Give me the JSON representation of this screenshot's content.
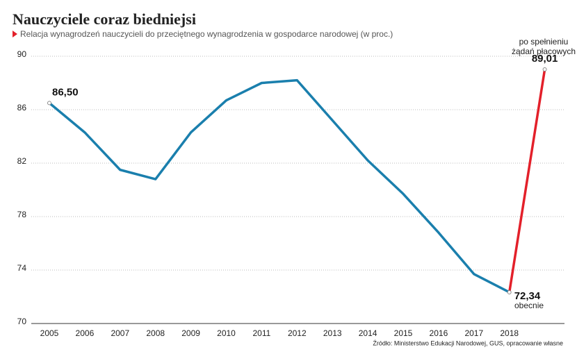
{
  "chart_data": {
    "type": "line",
    "title": "Nauczyciele coraz biedniejsi",
    "subtitle": "Relacja wynagrodzeń nauczycieli do przeciętnego wynagrodzenia w gospodarce narodowej (w proc.)",
    "categories": [
      "2005",
      "2006",
      "2007",
      "2008",
      "2009",
      "2010",
      "2011",
      "2012",
      "2013",
      "2014",
      "2015",
      "2016",
      "2017",
      "2018",
      null
    ],
    "series": [
      {
        "name": "obecnie",
        "color": "#1a7fad",
        "values": [
          86.5,
          84.3,
          81.5,
          80.8,
          84.3,
          86.7,
          88.0,
          88.2,
          85.2,
          82.2,
          79.7,
          76.8,
          73.7,
          72.34,
          null
        ],
        "value_labels": [
          "86,50",
          null,
          null,
          null,
          null,
          null,
          null,
          null,
          null,
          null,
          null,
          null,
          null,
          "72,34",
          null
        ]
      },
      {
        "name": "po spełnieniu żądań płacowych",
        "color": "#e3202a",
        "values": [
          null,
          null,
          null,
          null,
          null,
          null,
          null,
          null,
          null,
          null,
          null,
          null,
          null,
          72.34,
          89.01
        ],
        "value_labels": [
          null,
          null,
          null,
          null,
          null,
          null,
          null,
          null,
          null,
          null,
          null,
          null,
          null,
          null,
          "89,01"
        ]
      }
    ],
    "annotations": [
      "po spełnieniu",
      "żądań płacowych",
      "obecnie",
      "Źródło: Ministerstwo Edukacji Narodowej, GUS, opracowanie własne"
    ],
    "ylim": [
      70,
      90
    ],
    "yticks": [
      70,
      74,
      78,
      82,
      86,
      90
    ],
    "grid": true
  }
}
